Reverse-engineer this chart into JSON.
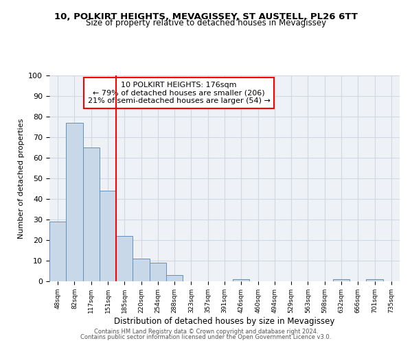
{
  "title1": "10, POLKIRT HEIGHTS, MEVAGISSEY, ST AUSTELL, PL26 6TT",
  "title2": "Size of property relative to detached houses in Mevagissey",
  "xlabel": "Distribution of detached houses by size in Mevagissey",
  "ylabel": "Number of detached properties",
  "categories": [
    "48sqm",
    "82sqm",
    "117sqm",
    "151sqm",
    "185sqm",
    "220sqm",
    "254sqm",
    "288sqm",
    "323sqm",
    "357sqm",
    "391sqm",
    "426sqm",
    "460sqm",
    "494sqm",
    "529sqm",
    "563sqm",
    "598sqm",
    "632sqm",
    "666sqm",
    "701sqm",
    "735sqm"
  ],
  "values": [
    29,
    77,
    65,
    44,
    22,
    11,
    9,
    3,
    0,
    0,
    0,
    1,
    0,
    0,
    0,
    0,
    0,
    1,
    0,
    1,
    0
  ],
  "bar_color": "#c8d8e8",
  "bar_edge_color": "#6090c0",
  "red_line_index": 4,
  "annotation_lines": [
    "10 POLKIRT HEIGHTS: 176sqm",
    "← 79% of detached houses are smaller (206)",
    "21% of semi-detached houses are larger (54) →"
  ],
  "ylim": [
    0,
    100
  ],
  "yticks": [
    0,
    10,
    20,
    30,
    40,
    50,
    60,
    70,
    80,
    90,
    100
  ],
  "footer1": "Contains HM Land Registry data © Crown copyright and database right 2024.",
  "footer2": "Contains public sector information licensed under the Open Government Licence v3.0.",
  "bg_color": "#eef2f7",
  "grid_color": "#d0d8e4"
}
